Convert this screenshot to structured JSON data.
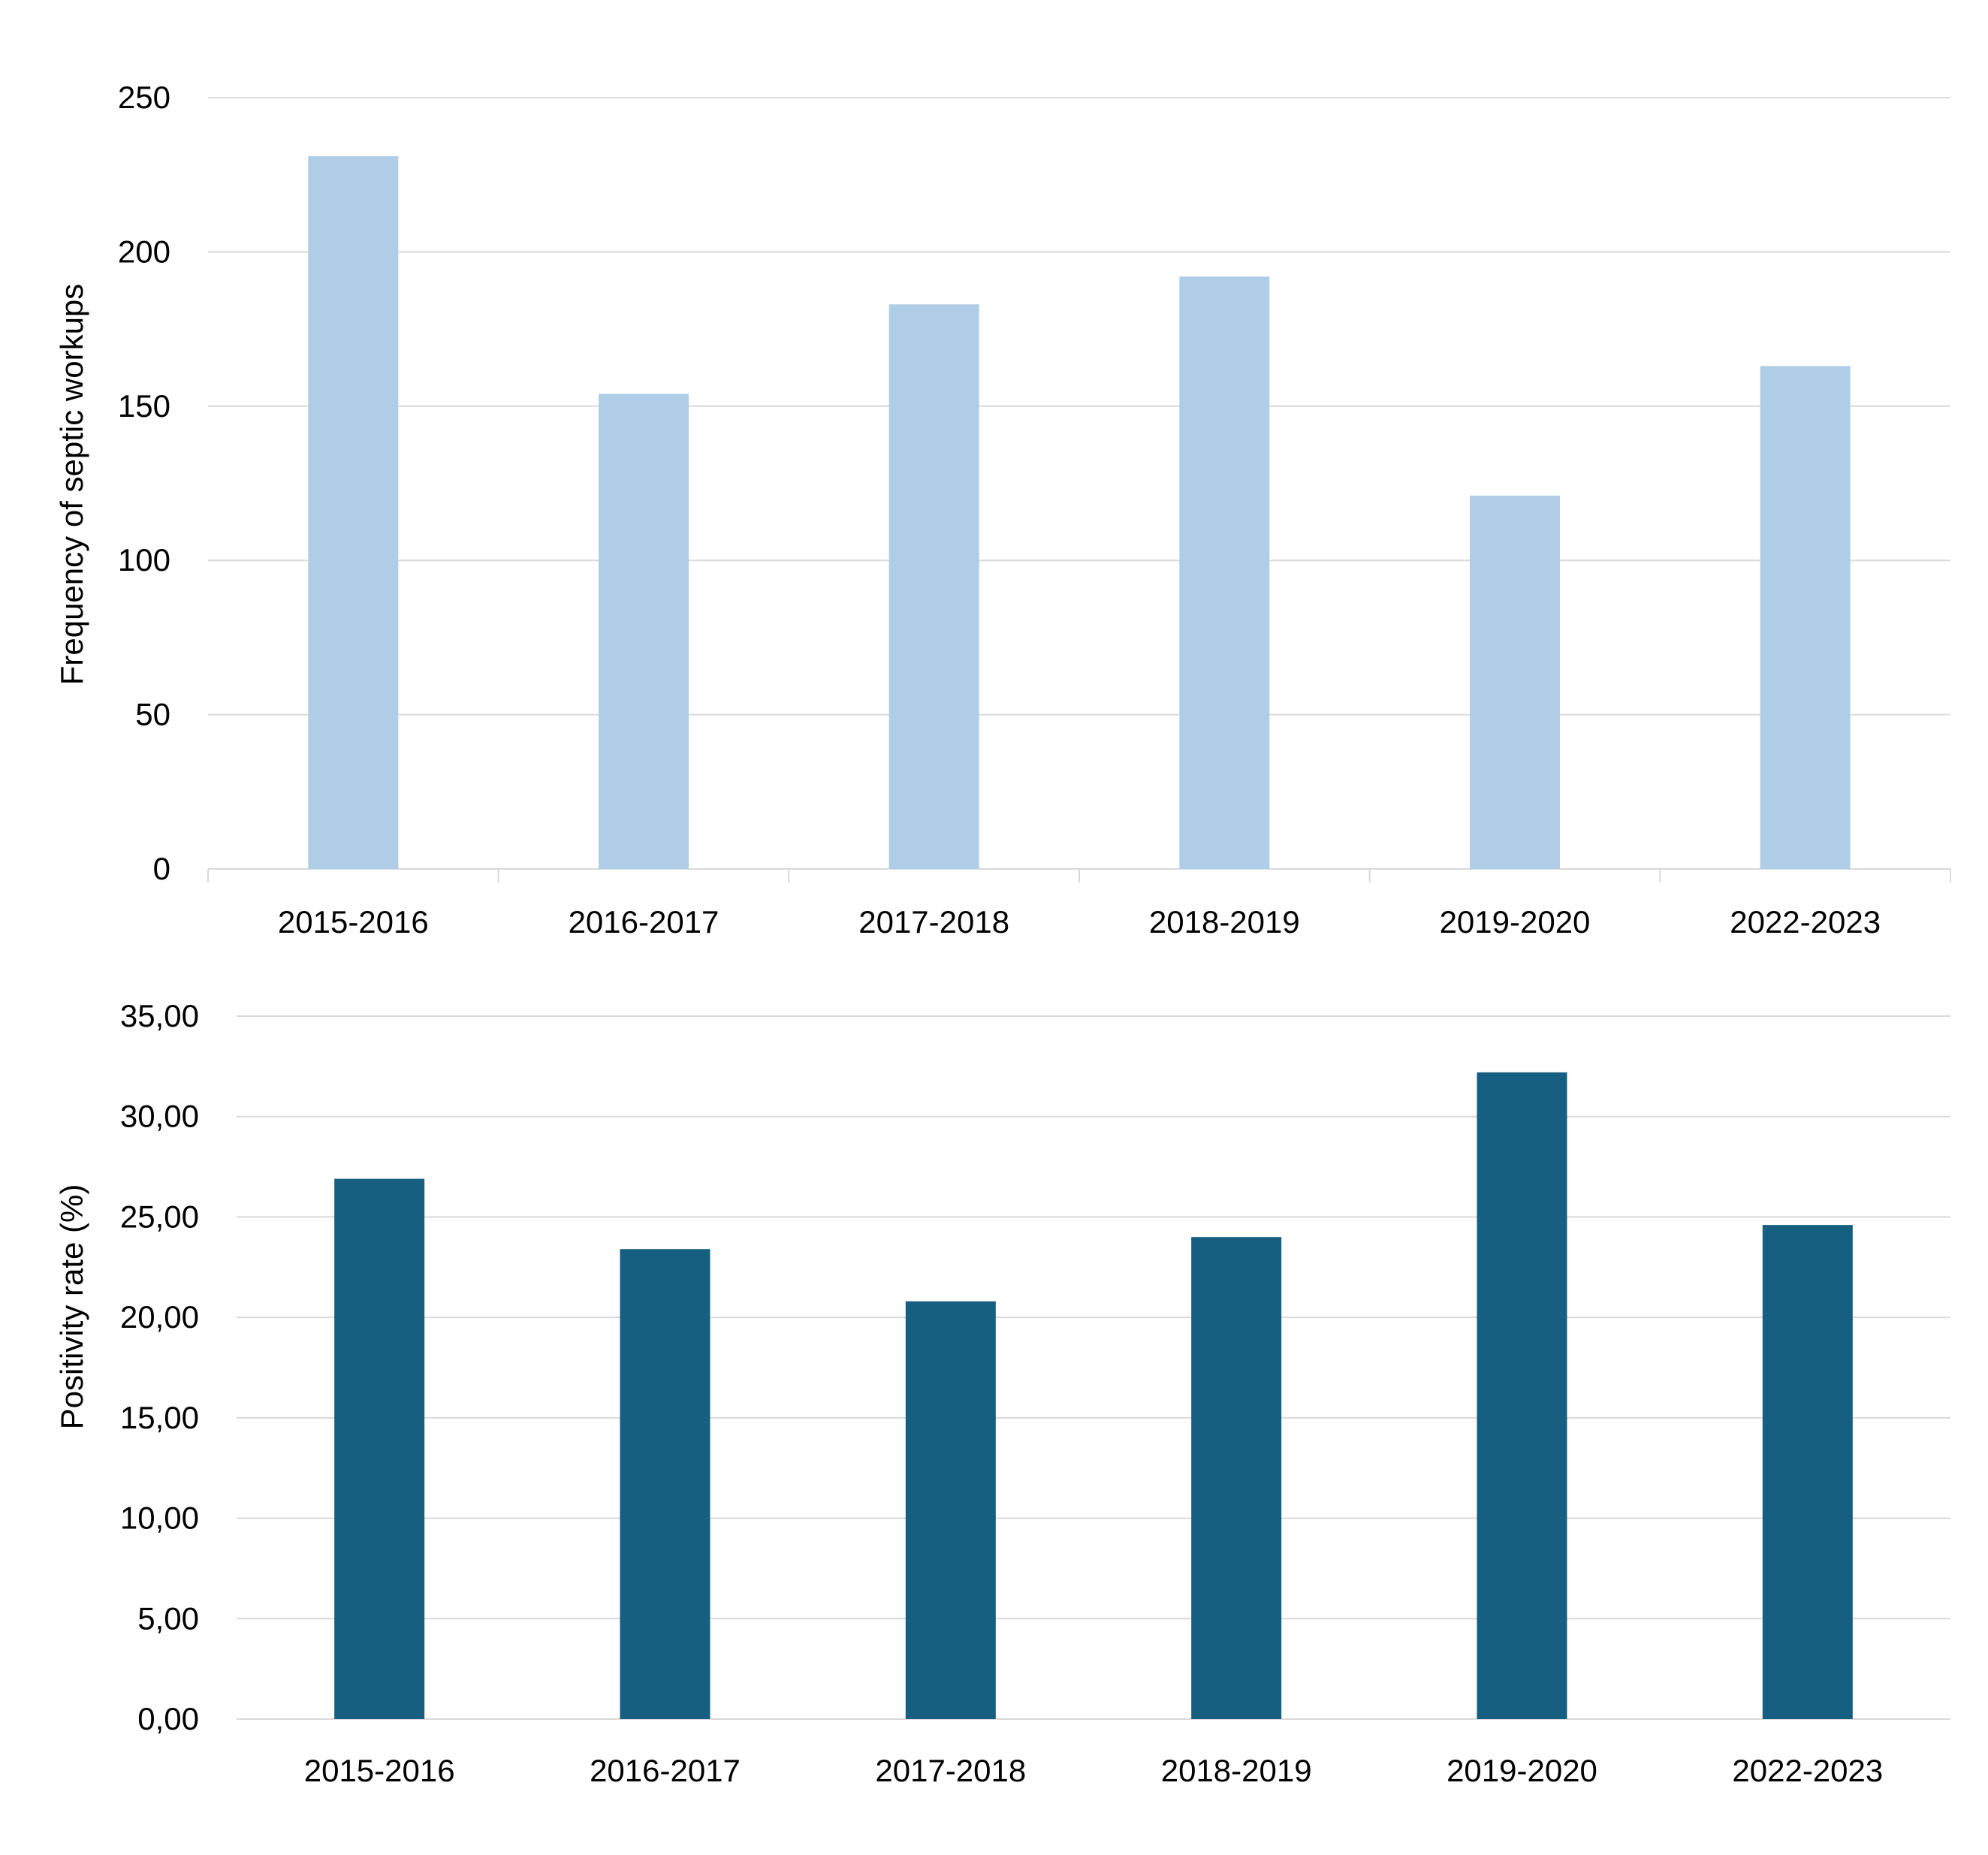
{
  "chart_data": [
    {
      "type": "bar",
      "title": "",
      "xlabel": "",
      "ylabel": "Frequency of septic workups",
      "ylim": [
        0,
        250
      ],
      "yticks": [
        "0",
        "50",
        "100",
        "150",
        "200",
        "250"
      ],
      "categories": [
        "2015-2016",
        "2016-2017",
        "2017-2018",
        "2018-2019",
        "2019-2020",
        "2022-2023"
      ],
      "values": [
        231,
        154,
        183,
        192,
        121,
        163
      ],
      "color": "#afcde6",
      "grid": true,
      "legend": "none"
    },
    {
      "type": "bar",
      "title": "",
      "xlabel": "",
      "ylabel": "Positivity rate (%)",
      "ylim": [
        0,
        35
      ],
      "yticks": [
        "0,00",
        "5,00",
        "10,00",
        "15,00",
        "20,00",
        "25,00",
        "30,00",
        "35,00"
      ],
      "categories": [
        "2015-2016",
        "2016-2017",
        "2017-2018",
        "2018-2019",
        "2019-2020",
        "2022-2023"
      ],
      "values": [
        26.9,
        23.4,
        20.8,
        24.0,
        32.2,
        24.6
      ],
      "color": "#175f80",
      "grid": true,
      "legend": "none"
    }
  ]
}
